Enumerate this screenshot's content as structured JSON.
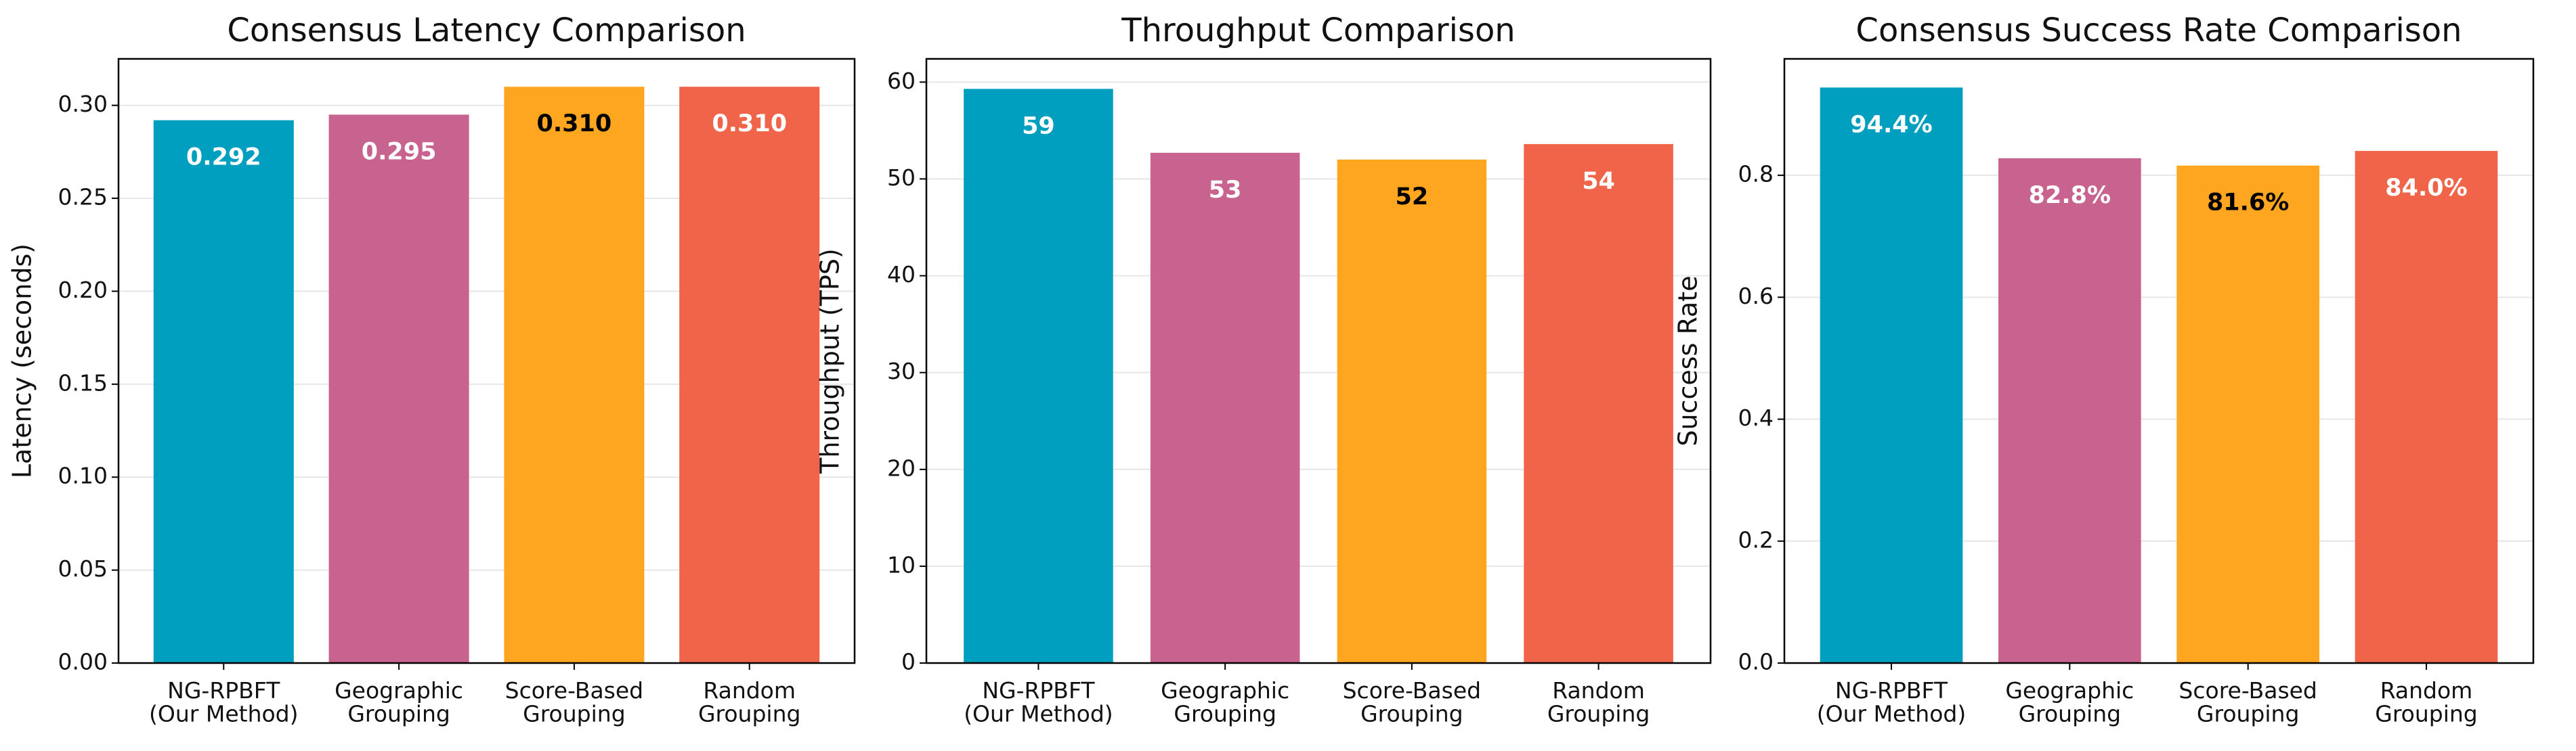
{
  "chart_data": [
    {
      "type": "bar",
      "title": "Consensus Latency Comparison",
      "ylabel": "Latency (seconds)",
      "categories": [
        "NG-RPBFT\n(Our Method)",
        "Geographic\nGrouping",
        "Score-Based\nGrouping",
        "Random\nGrouping"
      ],
      "values": [
        0.292,
        0.295,
        0.31,
        0.31
      ],
      "value_labels": [
        "0.292",
        "0.295",
        "0.310",
        "0.310"
      ],
      "colors": [
        "#009fc0",
        "#c8628f",
        "#ffa620",
        "#f0654a"
      ],
      "value_label_colors": [
        "#ffffff",
        "#ffffff",
        "#000000",
        "#ffffff"
      ],
      "ylim": [
        0,
        0.325
      ],
      "yticks": [
        {
          "value": 0,
          "label": "0.00"
        },
        {
          "value": 0.05,
          "label": "0.05"
        },
        {
          "value": 0.1,
          "label": "0.10"
        },
        {
          "value": 0.15,
          "label": "0.15"
        },
        {
          "value": 0.2,
          "label": "0.20"
        },
        {
          "value": 0.25,
          "label": "0.25"
        },
        {
          "value": 0.3,
          "label": "0.30"
        }
      ],
      "grid": true
    },
    {
      "type": "bar",
      "title": "Throughput Comparison",
      "ylabel": "Throughput (TPS)",
      "categories": [
        "NG-RPBFT\n(Our Method)",
        "Geographic\nGrouping",
        "Score-Based\nGrouping",
        "Random\nGrouping"
      ],
      "values": [
        59.3,
        52.7,
        52.0,
        53.6
      ],
      "value_labels": [
        "59",
        "53",
        "52",
        "54"
      ],
      "colors": [
        "#009fc0",
        "#c8628f",
        "#ffa620",
        "#f0654a"
      ],
      "value_label_colors": [
        "#ffffff",
        "#ffffff",
        "#000000",
        "#ffffff"
      ],
      "ylim": [
        0,
        62.4
      ],
      "yticks": [
        0,
        10,
        20,
        30,
        40,
        50,
        60
      ],
      "grid": true
    },
    {
      "type": "bar",
      "title": "Consensus Success Rate Comparison",
      "ylabel": "Success Rate",
      "categories": [
        "NG-RPBFT\n(Our Method)",
        "Geographic\nGrouping",
        "Score-Based\nGrouping",
        "Random\nGrouping"
      ],
      "values": [
        0.944,
        0.828,
        0.816,
        0.84
      ],
      "value_labels": [
        "94.4%",
        "82.8%",
        "81.6%",
        "84.0%"
      ],
      "colors": [
        "#009fc0",
        "#c8628f",
        "#ffa620",
        "#f0654a"
      ],
      "value_label_colors": [
        "#ffffff",
        "#ffffff",
        "#000000",
        "#ffffff"
      ],
      "ylim": [
        0,
        0.991
      ],
      "yticks": [
        {
          "value": 0,
          "label": "0.0"
        },
        {
          "value": 0.2,
          "label": "0.2"
        },
        {
          "value": 0.4,
          "label": "0.4"
        },
        {
          "value": 0.6,
          "label": "0.6"
        },
        {
          "value": 0.8,
          "label": "0.8"
        }
      ],
      "grid": true
    }
  ]
}
